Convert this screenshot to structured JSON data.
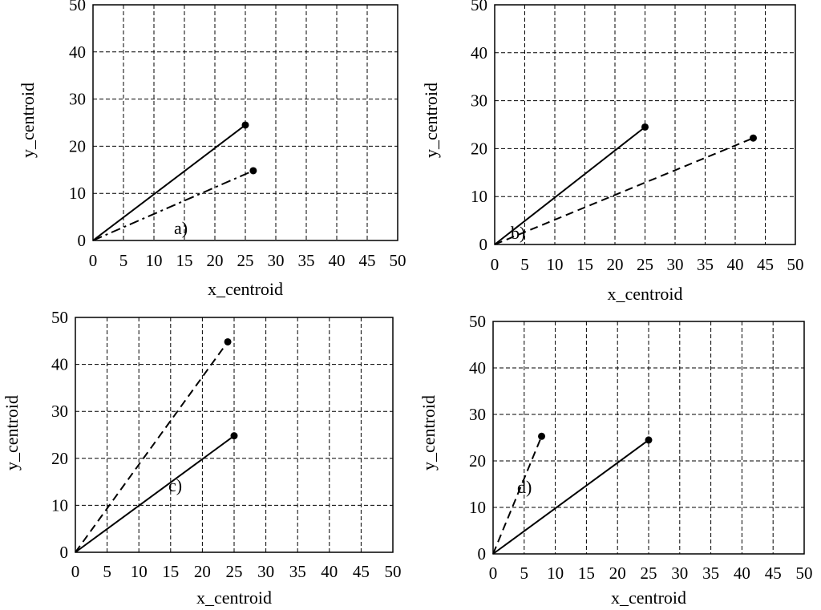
{
  "chart_data": [
    {
      "type": "line",
      "panel_label": "a)",
      "xlabel": "x_centroid",
      "ylabel": "y_centroid",
      "xlim": [
        0,
        50
      ],
      "ylim": [
        0,
        50
      ],
      "xticks": [
        0,
        5,
        10,
        15,
        20,
        25,
        30,
        35,
        40,
        45,
        50
      ],
      "yticks": [
        0,
        10,
        20,
        30,
        40,
        50
      ],
      "grid": true,
      "series": [
        {
          "style": "solid",
          "x": [
            0,
            25
          ],
          "y": [
            0,
            24.5
          ]
        },
        {
          "style": "dashdot",
          "x": [
            0,
            26.3
          ],
          "y": [
            0,
            14.8
          ]
        }
      ]
    },
    {
      "type": "line",
      "panel_label": "b)",
      "xlabel": "x_centroid",
      "ylabel": "y_centroid",
      "xlim": [
        0,
        50
      ],
      "ylim": [
        0,
        50
      ],
      "xticks": [
        0,
        5,
        10,
        15,
        20,
        25,
        30,
        35,
        40,
        45,
        50
      ],
      "yticks": [
        0,
        10,
        20,
        30,
        40,
        50
      ],
      "grid": true,
      "series": [
        {
          "style": "solid",
          "x": [
            0,
            25
          ],
          "y": [
            0,
            24.5
          ]
        },
        {
          "style": "dashed",
          "x": [
            0,
            43
          ],
          "y": [
            0,
            22.2
          ]
        }
      ]
    },
    {
      "type": "line",
      "panel_label": "c)",
      "xlabel": "x_centroid",
      "ylabel": "y_centroid",
      "xlim": [
        0,
        50
      ],
      "ylim": [
        0,
        50
      ],
      "xticks": [
        0,
        5,
        10,
        15,
        20,
        25,
        30,
        35,
        40,
        45,
        50
      ],
      "yticks": [
        0,
        10,
        20,
        30,
        40,
        50
      ],
      "grid": true,
      "series": [
        {
          "style": "solid",
          "x": [
            0,
            25
          ],
          "y": [
            0,
            24.8
          ]
        },
        {
          "style": "dashed",
          "x": [
            0,
            24
          ],
          "y": [
            0,
            44.8
          ]
        }
      ]
    },
    {
      "type": "line",
      "panel_label": "d)",
      "xlabel": "x_centroid",
      "ylabel": "y_centroid",
      "xlim": [
        0,
        50
      ],
      "ylim": [
        0,
        50
      ],
      "xticks": [
        0,
        5,
        10,
        15,
        20,
        25,
        30,
        35,
        40,
        45,
        50
      ],
      "yticks": [
        0,
        10,
        20,
        30,
        40,
        50
      ],
      "grid": true,
      "series": [
        {
          "style": "solid",
          "x": [
            0,
            25
          ],
          "y": [
            0,
            24.5
          ]
        },
        {
          "style": "dashed",
          "x": [
            0,
            7.8
          ],
          "y": [
            0,
            25.3
          ]
        }
      ]
    }
  ]
}
